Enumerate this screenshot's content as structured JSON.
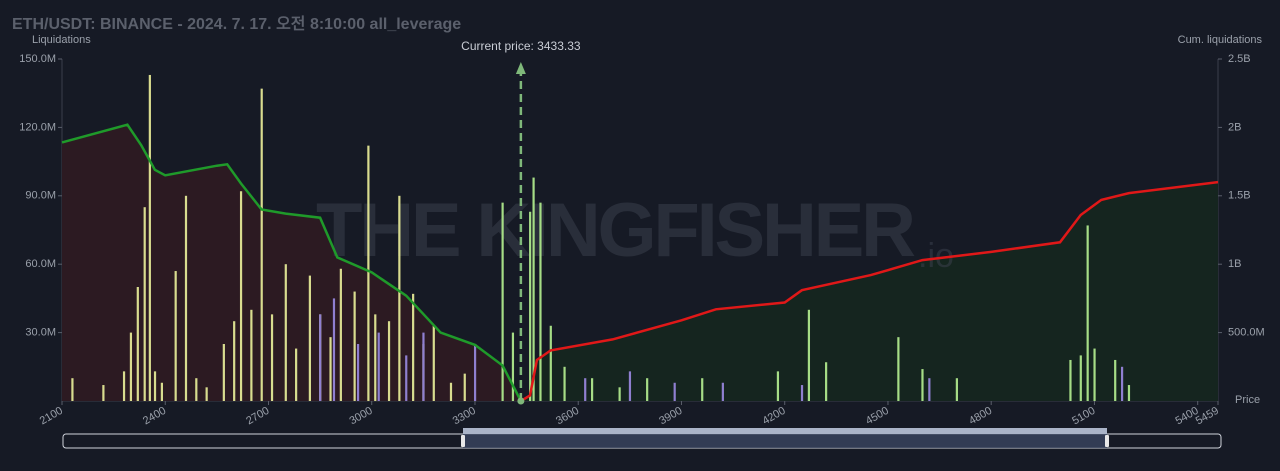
{
  "chart_data": {
    "type": "liquidation_map",
    "title": "ETH/USDT: BINANCE - 2024. 7. 17. 오전 8:10:00 all_leverage",
    "ylabel": "Liquidations",
    "y2label": "Cum. liquidations",
    "xlabel": "Price",
    "current_price_label": "Current price: 3433.33",
    "current_price": 3433.33,
    "watermark": "THE KINGFISHER",
    "watermark_suffix": ".io",
    "xlim": [
      2100,
      5459
    ],
    "xticks": [
      2100,
      2400,
      2700,
      3000,
      3300,
      3600,
      3900,
      4200,
      4500,
      4800,
      5100,
      5400,
      5459
    ],
    "ylim": [
      0,
      150000000
    ],
    "yticks": [
      {
        "value": 30000000,
        "label": "30.0M"
      },
      {
        "value": 60000000,
        "label": "60.0M"
      },
      {
        "value": 90000000,
        "label": "90.0M"
      },
      {
        "value": 120000000,
        "label": "120.0M"
      },
      {
        "value": 150000000,
        "label": "150.0M"
      }
    ],
    "y2lim": [
      0,
      2500000000
    ],
    "y2ticks": [
      {
        "value": 500000000,
        "label": "500.0M"
      },
      {
        "value": 1000000000,
        "label": "1B"
      },
      {
        "value": 1500000000,
        "label": "1.5B"
      },
      {
        "value": 2000000000,
        "label": "2B"
      },
      {
        "value": 2500000000,
        "label": "2.5B"
      }
    ],
    "bars": [
      {
        "color": "#d9dc8f",
        "x": [
          2130,
          2220,
          2280,
          2300,
          2320,
          2340,
          2355,
          2370,
          2390,
          2430,
          2460,
          2490,
          2520,
          2570,
          2600,
          2620,
          2650,
          2680,
          2710,
          2750,
          2780,
          2820,
          2850,
          2880,
          2910,
          2950,
          2990,
          3010,
          3050,
          3080,
          3120,
          3150,
          3180,
          3230,
          3270
        ],
        "values": [
          10000000,
          7000000,
          13000000,
          30000000,
          50000000,
          85000000,
          143000000,
          13000000,
          8000000,
          57000000,
          90000000,
          10000000,
          6000000,
          25000000,
          35000000,
          92000000,
          40000000,
          137000000,
          38000000,
          60000000,
          23000000,
          55000000,
          38000000,
          28000000,
          58000000,
          48000000,
          112000000,
          38000000,
          35000000,
          90000000,
          47000000,
          25000000,
          33000000,
          8000000,
          12000000
        ]
      },
      {
        "color": "#a6dd86",
        "x": [
          3380,
          3410,
          3460,
          3470,
          3490,
          3520,
          3560,
          3640,
          3720,
          3800,
          3960,
          4180,
          4270,
          4320,
          4530,
          4600,
          4700,
          5030,
          5060,
          5080,
          5100,
          5160,
          5200
        ],
        "values": [
          87000000,
          30000000,
          83000000,
          98000000,
          87000000,
          33000000,
          15000000,
          10000000,
          6000000,
          10000000,
          10000000,
          13000000,
          40000000,
          17000000,
          28000000,
          14000000,
          10000000,
          18000000,
          20000000,
          77000000,
          23000000,
          18000000,
          7000000
        ]
      },
      {
        "color": "#8f7fd0",
        "x": [
          2850,
          2890,
          2960,
          3020,
          3100,
          3150,
          3300,
          3620,
          3750,
          3880,
          4020,
          4250,
          4620,
          5180
        ],
        "values": [
          38000000,
          45000000,
          25000000,
          30000000,
          20000000,
          30000000,
          25000000,
          10000000,
          13000000,
          8000000,
          8000000,
          7000000,
          10000000,
          15000000
        ]
      }
    ],
    "lines": [
      {
        "axis": "y2",
        "color": "#1f9a2a",
        "fill": "#2c1a22",
        "x": [
          2100,
          2290,
          2330,
          2370,
          2400,
          2550,
          2580,
          2620,
          2680,
          2750,
          2850,
          2900,
          3000,
          3100,
          3200,
          3300,
          3380,
          3433.33
        ],
        "values": [
          1890000000,
          2020000000,
          1870000000,
          1690000000,
          1650000000,
          1720000000,
          1730000000,
          1590000000,
          1400000000,
          1370000000,
          1340000000,
          1050000000,
          940000000,
          770000000,
          500000000,
          410000000,
          260000000,
          0
        ]
      },
      {
        "axis": "y2",
        "color": "#e01818",
        "fill": "#15251f",
        "x": [
          3433.33,
          3460,
          3480,
          3520,
          3700,
          3900,
          4000,
          4200,
          4250,
          4450,
          4600,
          4800,
          5000,
          5060,
          5120,
          5200,
          5459
        ],
        "values": [
          0,
          40000000,
          300000000,
          370000000,
          450000000,
          590000000,
          670000000,
          720000000,
          810000000,
          920000000,
          1030000000,
          1090000000,
          1160000000,
          1360000000,
          1470000000,
          1520000000,
          1600000000
        ]
      }
    ]
  }
}
